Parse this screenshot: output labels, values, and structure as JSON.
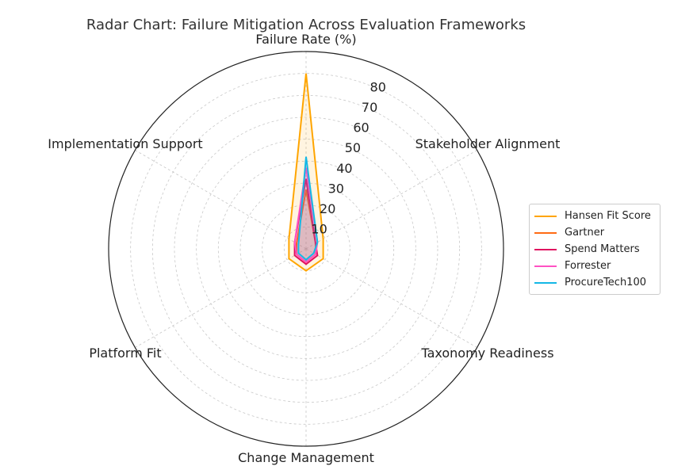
{
  "chart_data": {
    "type": "radar",
    "title": "Radar Chart: Failure Mitigation Across Evaluation Frameworks",
    "axes": [
      "Failure Rate (%)",
      "Stakeholder Alignment",
      "Taxonomy Readiness",
      "Change Management",
      "Platform Fit",
      "Implementation Support"
    ],
    "rticks": [
      10,
      20,
      30,
      40,
      50,
      60,
      70,
      80
    ],
    "rlim": [
      0,
      90
    ],
    "grid": true,
    "legend_position": "right",
    "series": [
      {
        "name": "Hansen Fit Score",
        "color": "#FFA500",
        "values": [
          80,
          9,
          9,
          10,
          9,
          9
        ]
      },
      {
        "name": "Gartner",
        "color": "#FF6A13",
        "values": [
          27,
          5,
          5,
          6,
          5,
          5
        ]
      },
      {
        "name": "Spend Matters",
        "color": "#E0115F",
        "values": [
          32,
          5,
          6,
          7,
          6,
          6
        ]
      },
      {
        "name": "Forrester",
        "color": "#FF52C3",
        "values": [
          37,
          6,
          5,
          6,
          5,
          6
        ]
      },
      {
        "name": "ProcureTech100",
        "color": "#14B8E6",
        "values": [
          42,
          6,
          4,
          5,
          4,
          4
        ]
      }
    ]
  }
}
